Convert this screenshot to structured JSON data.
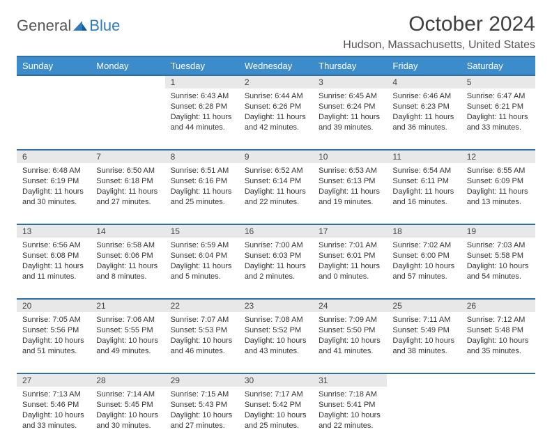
{
  "logo": {
    "text1": "General",
    "text2": "Blue"
  },
  "title": "October 2024",
  "location": "Hudson, Massachusetts, United States",
  "colors": {
    "header_bg": "#3c8ccc",
    "header_border": "#2e6fa3",
    "daynum_bg": "#e8e8e8",
    "text": "#333333",
    "logo_blue": "#2f7abf"
  },
  "day_headers": [
    "Sunday",
    "Monday",
    "Tuesday",
    "Wednesday",
    "Thursday",
    "Friday",
    "Saturday"
  ],
  "weeks": [
    {
      "nums": [
        "",
        "",
        "1",
        "2",
        "3",
        "4",
        "5"
      ],
      "cells": [
        null,
        null,
        {
          "sunrise": "Sunrise: 6:43 AM",
          "sunset": "Sunset: 6:28 PM",
          "day1": "Daylight: 11 hours",
          "day2": "and 44 minutes."
        },
        {
          "sunrise": "Sunrise: 6:44 AM",
          "sunset": "Sunset: 6:26 PM",
          "day1": "Daylight: 11 hours",
          "day2": "and 42 minutes."
        },
        {
          "sunrise": "Sunrise: 6:45 AM",
          "sunset": "Sunset: 6:24 PM",
          "day1": "Daylight: 11 hours",
          "day2": "and 39 minutes."
        },
        {
          "sunrise": "Sunrise: 6:46 AM",
          "sunset": "Sunset: 6:23 PM",
          "day1": "Daylight: 11 hours",
          "day2": "and 36 minutes."
        },
        {
          "sunrise": "Sunrise: 6:47 AM",
          "sunset": "Sunset: 6:21 PM",
          "day1": "Daylight: 11 hours",
          "day2": "and 33 minutes."
        }
      ]
    },
    {
      "nums": [
        "6",
        "7",
        "8",
        "9",
        "10",
        "11",
        "12"
      ],
      "cells": [
        {
          "sunrise": "Sunrise: 6:48 AM",
          "sunset": "Sunset: 6:19 PM",
          "day1": "Daylight: 11 hours",
          "day2": "and 30 minutes."
        },
        {
          "sunrise": "Sunrise: 6:50 AM",
          "sunset": "Sunset: 6:18 PM",
          "day1": "Daylight: 11 hours",
          "day2": "and 27 minutes."
        },
        {
          "sunrise": "Sunrise: 6:51 AM",
          "sunset": "Sunset: 6:16 PM",
          "day1": "Daylight: 11 hours",
          "day2": "and 25 minutes."
        },
        {
          "sunrise": "Sunrise: 6:52 AM",
          "sunset": "Sunset: 6:14 PM",
          "day1": "Daylight: 11 hours",
          "day2": "and 22 minutes."
        },
        {
          "sunrise": "Sunrise: 6:53 AM",
          "sunset": "Sunset: 6:13 PM",
          "day1": "Daylight: 11 hours",
          "day2": "and 19 minutes."
        },
        {
          "sunrise": "Sunrise: 6:54 AM",
          "sunset": "Sunset: 6:11 PM",
          "day1": "Daylight: 11 hours",
          "day2": "and 16 minutes."
        },
        {
          "sunrise": "Sunrise: 6:55 AM",
          "sunset": "Sunset: 6:09 PM",
          "day1": "Daylight: 11 hours",
          "day2": "and 13 minutes."
        }
      ]
    },
    {
      "nums": [
        "13",
        "14",
        "15",
        "16",
        "17",
        "18",
        "19"
      ],
      "cells": [
        {
          "sunrise": "Sunrise: 6:56 AM",
          "sunset": "Sunset: 6:08 PM",
          "day1": "Daylight: 11 hours",
          "day2": "and 11 minutes."
        },
        {
          "sunrise": "Sunrise: 6:58 AM",
          "sunset": "Sunset: 6:06 PM",
          "day1": "Daylight: 11 hours",
          "day2": "and 8 minutes."
        },
        {
          "sunrise": "Sunrise: 6:59 AM",
          "sunset": "Sunset: 6:04 PM",
          "day1": "Daylight: 11 hours",
          "day2": "and 5 minutes."
        },
        {
          "sunrise": "Sunrise: 7:00 AM",
          "sunset": "Sunset: 6:03 PM",
          "day1": "Daylight: 11 hours",
          "day2": "and 2 minutes."
        },
        {
          "sunrise": "Sunrise: 7:01 AM",
          "sunset": "Sunset: 6:01 PM",
          "day1": "Daylight: 11 hours",
          "day2": "and 0 minutes."
        },
        {
          "sunrise": "Sunrise: 7:02 AM",
          "sunset": "Sunset: 6:00 PM",
          "day1": "Daylight: 10 hours",
          "day2": "and 57 minutes."
        },
        {
          "sunrise": "Sunrise: 7:03 AM",
          "sunset": "Sunset: 5:58 PM",
          "day1": "Daylight: 10 hours",
          "day2": "and 54 minutes."
        }
      ]
    },
    {
      "nums": [
        "20",
        "21",
        "22",
        "23",
        "24",
        "25",
        "26"
      ],
      "cells": [
        {
          "sunrise": "Sunrise: 7:05 AM",
          "sunset": "Sunset: 5:56 PM",
          "day1": "Daylight: 10 hours",
          "day2": "and 51 minutes."
        },
        {
          "sunrise": "Sunrise: 7:06 AM",
          "sunset": "Sunset: 5:55 PM",
          "day1": "Daylight: 10 hours",
          "day2": "and 49 minutes."
        },
        {
          "sunrise": "Sunrise: 7:07 AM",
          "sunset": "Sunset: 5:53 PM",
          "day1": "Daylight: 10 hours",
          "day2": "and 46 minutes."
        },
        {
          "sunrise": "Sunrise: 7:08 AM",
          "sunset": "Sunset: 5:52 PM",
          "day1": "Daylight: 10 hours",
          "day2": "and 43 minutes."
        },
        {
          "sunrise": "Sunrise: 7:09 AM",
          "sunset": "Sunset: 5:50 PM",
          "day1": "Daylight: 10 hours",
          "day2": "and 41 minutes."
        },
        {
          "sunrise": "Sunrise: 7:11 AM",
          "sunset": "Sunset: 5:49 PM",
          "day1": "Daylight: 10 hours",
          "day2": "and 38 minutes."
        },
        {
          "sunrise": "Sunrise: 7:12 AM",
          "sunset": "Sunset: 5:48 PM",
          "day1": "Daylight: 10 hours",
          "day2": "and 35 minutes."
        }
      ]
    },
    {
      "nums": [
        "27",
        "28",
        "29",
        "30",
        "31",
        "",
        ""
      ],
      "cells": [
        {
          "sunrise": "Sunrise: 7:13 AM",
          "sunset": "Sunset: 5:46 PM",
          "day1": "Daylight: 10 hours",
          "day2": "and 33 minutes."
        },
        {
          "sunrise": "Sunrise: 7:14 AM",
          "sunset": "Sunset: 5:45 PM",
          "day1": "Daylight: 10 hours",
          "day2": "and 30 minutes."
        },
        {
          "sunrise": "Sunrise: 7:15 AM",
          "sunset": "Sunset: 5:43 PM",
          "day1": "Daylight: 10 hours",
          "day2": "and 27 minutes."
        },
        {
          "sunrise": "Sunrise: 7:17 AM",
          "sunset": "Sunset: 5:42 PM",
          "day1": "Daylight: 10 hours",
          "day2": "and 25 minutes."
        },
        {
          "sunrise": "Sunrise: 7:18 AM",
          "sunset": "Sunset: 5:41 PM",
          "day1": "Daylight: 10 hours",
          "day2": "and 22 minutes."
        },
        null,
        null
      ]
    }
  ]
}
